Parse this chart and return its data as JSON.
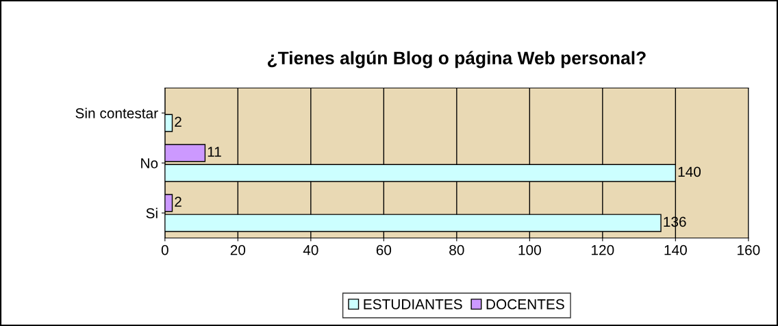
{
  "chart_data": {
    "type": "bar",
    "orientation": "horizontal",
    "title": "¿Tienes algún Blog o página Web personal?",
    "categories": [
      "Sin contestar",
      "No",
      "Si"
    ],
    "series": [
      {
        "name": "ESTUDIANTES",
        "color": "#ccffff",
        "values": [
          2,
          140,
          136
        ]
      },
      {
        "name": "DOCENTES",
        "color": "#cc99ff",
        "values": [
          null,
          11,
          2
        ]
      }
    ],
    "xlim": [
      0,
      160
    ],
    "xticks": [
      0,
      20,
      40,
      60,
      80,
      100,
      120,
      140,
      160
    ],
    "grid": "x",
    "legend": "bottom",
    "data_labels": true
  }
}
